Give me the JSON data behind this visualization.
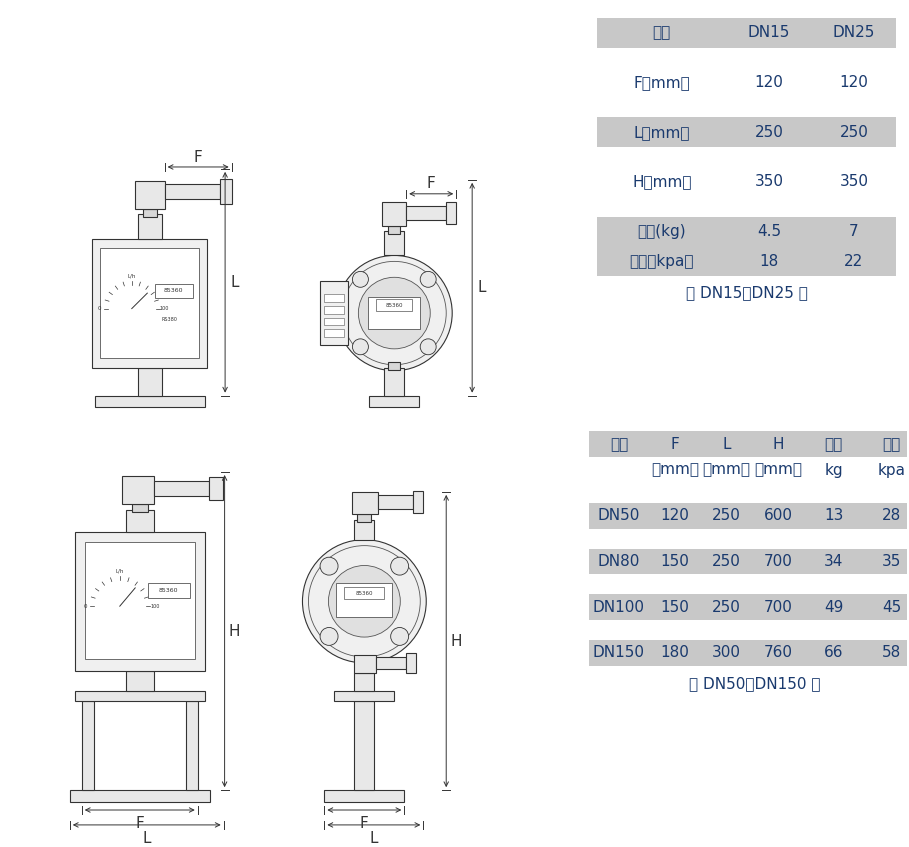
{
  "bg_color": "#ffffff",
  "table1": {
    "header": [
      "口径",
      "DN15",
      "DN25"
    ],
    "rows": [
      [
        "F（mm）",
        "120",
        "120"
      ],
      [
        "L（mm）",
        "250",
        "250"
      ],
      [
        "H（mm）",
        "350",
        "350"
      ],
      [
        "重量(kg)",
        "4.5",
        "7"
      ],
      [
        "压损（kpa）",
        "18",
        "22"
      ]
    ],
    "caption": "（ DN15～DN25 ）"
  },
  "table2": {
    "header": [
      "口径",
      "F",
      "L",
      "H",
      "重量",
      "压损"
    ],
    "subheader": [
      "",
      "（mm）",
      "（mm）",
      "（mm）",
      "kg",
      "kpa"
    ],
    "rows": [
      [
        "DN50",
        "120",
        "250",
        "600",
        "13",
        "28"
      ],
      [
        "DN80",
        "150",
        "250",
        "700",
        "34",
        "35"
      ],
      [
        "DN100",
        "150",
        "250",
        "700",
        "49",
        "45"
      ],
      [
        "DN150",
        "180",
        "300",
        "760",
        "66",
        "58"
      ]
    ],
    "caption": "（ DN50～DN150 ）"
  },
  "table_bg": "#c8c8c8",
  "table_text_color": "#1a3a6e",
  "font_size": 11,
  "dim_label_size": 11,
  "diagram_line_color": "#555555",
  "diagram_dark_color": "#333333",
  "diagram_fill_light": "#f0f0f0",
  "diagram_fill_mid": "#e0e0e0",
  "diagram_fill_white": "#ffffff"
}
